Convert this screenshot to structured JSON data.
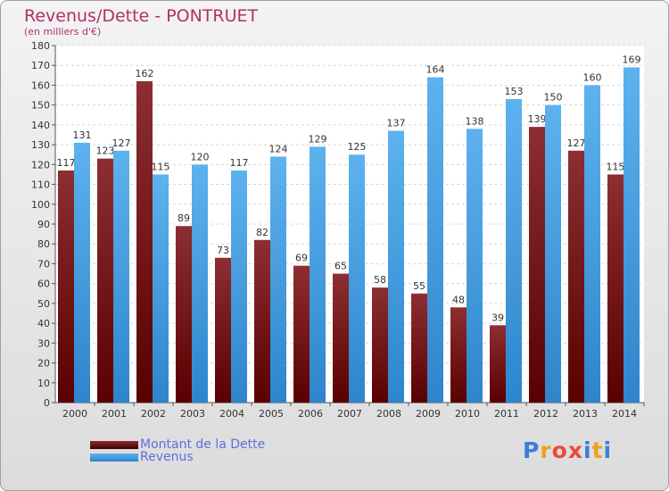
{
  "chart_data": {
    "type": "bar",
    "title": "Revenus/Dette - PONTRUET",
    "subtitle": "(en milliers d'€)",
    "categories": [
      "2000",
      "2001",
      "2002",
      "2003",
      "2004",
      "2005",
      "2006",
      "2007",
      "2008",
      "2009",
      "2010",
      "2011",
      "2012",
      "2013",
      "2014"
    ],
    "series": [
      {
        "name": "Montant de la Dette",
        "color": "#6e0e10",
        "values": [
          117,
          123,
          162,
          89,
          73,
          82,
          69,
          65,
          58,
          55,
          48,
          39,
          139,
          127,
          115
        ]
      },
      {
        "name": "Revenus",
        "color": "#4aa3e6",
        "values": [
          131,
          127,
          115,
          120,
          117,
          124,
          129,
          125,
          137,
          164,
          138,
          153,
          150,
          160,
          169
        ]
      }
    ],
    "ylim": [
      0,
      180
    ],
    "ytick_step": 10,
    "grid": true,
    "legend": "bottom-left"
  },
  "branding": {
    "logo_letters": [
      "P",
      "r",
      "o",
      "x",
      "i",
      "t",
      "i"
    ],
    "logo_colors": [
      "#3a7fd5",
      "#f0a020",
      "#e74c3c",
      "#e74c3c",
      "#3a7fd5",
      "#f0a020",
      "#3a7fd5"
    ]
  }
}
